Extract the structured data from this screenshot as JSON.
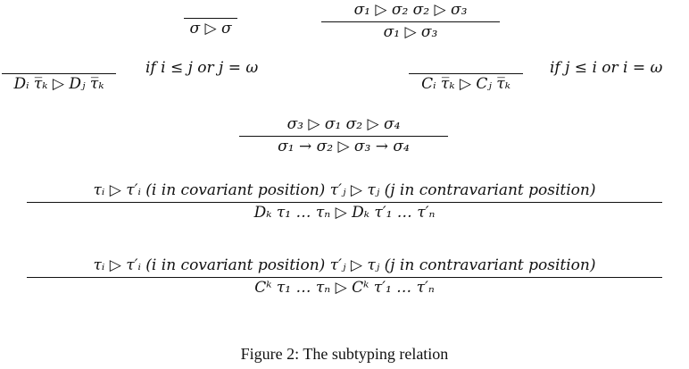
{
  "rules": {
    "refl": {
      "premise": "",
      "conclusion": "σ ▷ σ"
    },
    "trans": {
      "premise": "σ₁ ▷ σ₂        σ₂ ▷ σ₃",
      "conclusion": "σ₁ ▷ σ₃"
    },
    "d_variant": {
      "premise": "",
      "conclusion": "Dᵢ τ̅ₖ ▷ Dⱼ τ̅ₖ",
      "side": "if i ≤ j or j = ω"
    },
    "c_variant": {
      "premise": "",
      "conclusion": "Cᵢ τ̅ₖ ▷ Cⱼ τ̅ₖ",
      "side": "if j ≤ i or i = ω"
    },
    "arrow": {
      "premise": "σ₃  ▷  σ₁        σ₂  ▷  σ₄",
      "conclusion": "σ₁ → σ₂  ▷  σ₃ → σ₄"
    },
    "d_con": {
      "premise": "τᵢ ▷ τ′ᵢ (i in covariant position)      τ′ⱼ ▷ τⱼ (j in contravariant position)",
      "conclusion": "Dₖ τ₁ … τₙ ▷ Dₖ τ′₁ … τ′ₙ"
    },
    "c_con": {
      "premise": "τᵢ ▷ τ′ᵢ (i in covariant position)      τ′ⱼ ▷ τⱼ (j in contravariant position)",
      "conclusion": "Cᵏ τ₁ … τₙ ▷ Cᵏ τ′₁ … τ′ₙ"
    }
  },
  "caption": "Figure 2:  The subtyping relation"
}
